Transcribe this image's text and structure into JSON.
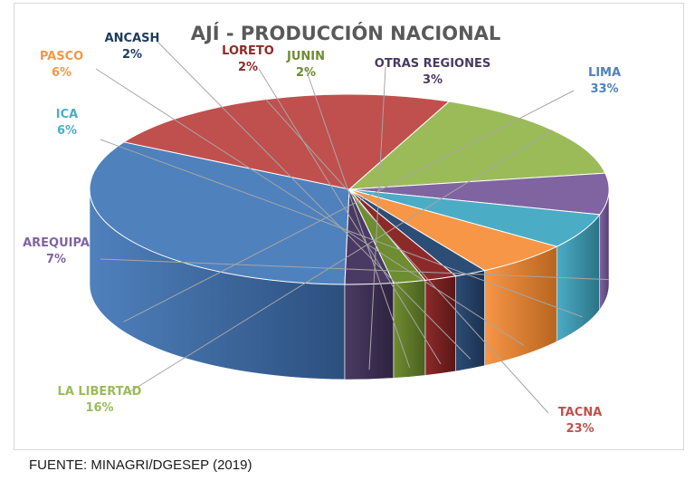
{
  "chart_data": {
    "type": "pie",
    "title": "AJÍ - PRODUCCIÓN NACIONAL",
    "slices": [
      {
        "name": "LIMA",
        "pct_label": "33%",
        "value": 33,
        "color": "#4f81bd",
        "side_color": "#2c4f7e",
        "label_color": "#4f81bd"
      },
      {
        "name": "TACNA",
        "pct_label": "23%",
        "value": 23,
        "color": "#c0504d",
        "side_color": "#7a2422",
        "label_color": "#c0504d"
      },
      {
        "name": "LA LIBERTAD",
        "pct_label": "16%",
        "value": 16,
        "color": "#9bbb59",
        "side_color": "#6f8e34",
        "label_color": "#9bbb59"
      },
      {
        "name": "AREQUIPA",
        "pct_label": "7%",
        "value": 7,
        "color": "#8064a2",
        "side_color": "#553f73",
        "label_color": "#8064a2"
      },
      {
        "name": "ICA",
        "pct_label": "6%",
        "value": 6,
        "color": "#4bacc6",
        "side_color": "#2b7385",
        "label_color": "#4bacc6"
      },
      {
        "name": "PASCO",
        "pct_label": "6%",
        "value": 6,
        "color": "#f79646",
        "side_color": "#b8651f",
        "label_color": "#f79646"
      },
      {
        "name": "ANCASH",
        "pct_label": "2%",
        "value": 2,
        "color": "#2c4d75",
        "side_color": "#1b3150",
        "label_color": "#1f3b5e"
      },
      {
        "name": "LORETO",
        "pct_label": "2%",
        "value": 2,
        "color": "#8c2a2a",
        "side_color": "#5a1616",
        "label_color": "#8c2a2a"
      },
      {
        "name": "JUNIN",
        "pct_label": "2%",
        "value": 2,
        "color": "#6e8c30",
        "side_color": "#4a6020",
        "label_color": "#6e8c30"
      },
      {
        "name": "OTRAS REGIONES",
        "pct_label": "3%",
        "value": 3,
        "color": "#4a3a63",
        "side_color": "#2e2340",
        "label_color": "#4a3a63"
      }
    ]
  },
  "source_note": "FUENTE: MINAGRI/DGESEP (2019)"
}
